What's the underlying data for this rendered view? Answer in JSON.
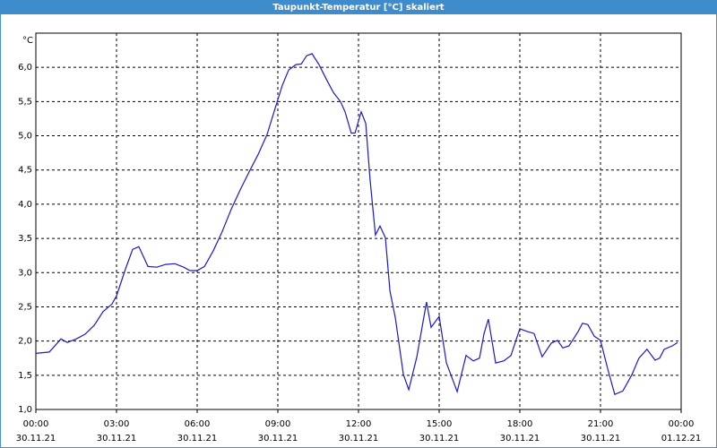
{
  "chart_data": {
    "type": "line",
    "title": "Taupunkt-Temperatur [°C] skaliert",
    "y_label": "°C",
    "color": "#1a1acc",
    "grid": true,
    "xlim": [
      0,
      24
    ],
    "ylim": [
      1.0,
      6.5
    ],
    "xticks": [
      {
        "value": 0,
        "label": "00:00",
        "date": "30.11.21"
      },
      {
        "value": 3,
        "label": "03:00",
        "date": "30.11.21"
      },
      {
        "value": 6,
        "label": "06:00",
        "date": "30.11.21"
      },
      {
        "value": 9,
        "label": "09:00",
        "date": "30.11.21"
      },
      {
        "value": 12,
        "label": "12:00",
        "date": "30.11.21"
      },
      {
        "value": 15,
        "label": "15:00",
        "date": "30.11.21"
      },
      {
        "value": 18,
        "label": "18:00",
        "date": "30.11.21"
      },
      {
        "value": 21,
        "label": "21:00",
        "date": "30.11.21"
      },
      {
        "value": 24,
        "label": "00:00",
        "date": "01.12.21"
      }
    ],
    "yticks": [
      {
        "value": 1.0,
        "label": "1,0"
      },
      {
        "value": 1.5,
        "label": "1,5"
      },
      {
        "value": 2.0,
        "label": "2,0"
      },
      {
        "value": 2.5,
        "label": "2,5"
      },
      {
        "value": 3.0,
        "label": "3,0"
      },
      {
        "value": 3.5,
        "label": "3,5"
      },
      {
        "value": 4.0,
        "label": "4,0"
      },
      {
        "value": 4.5,
        "label": "4,5"
      },
      {
        "value": 5.0,
        "label": "5,0"
      },
      {
        "value": 5.5,
        "label": "5,5"
      },
      {
        "value": 6.0,
        "label": "6,0"
      }
    ],
    "x": [
      0.0,
      0.5,
      0.73,
      0.93,
      1.17,
      1.5,
      1.83,
      2.17,
      2.5,
      2.83,
      3.0,
      3.33,
      3.6,
      3.83,
      4.17,
      4.5,
      4.83,
      5.17,
      5.5,
      5.73,
      6.0,
      6.27,
      6.6,
      6.93,
      7.27,
      7.6,
      7.93,
      8.27,
      8.6,
      8.93,
      9.17,
      9.4,
      9.67,
      9.87,
      10.07,
      10.27,
      10.53,
      10.8,
      11.07,
      11.33,
      11.5,
      11.73,
      11.87,
      12.1,
      12.27,
      12.43,
      12.63,
      12.8,
      13.0,
      13.17,
      13.37,
      13.67,
      13.87,
      14.17,
      14.53,
      14.7,
      15.0,
      15.27,
      15.67,
      16.0,
      16.27,
      16.5,
      16.67,
      16.83,
      17.1,
      17.4,
      17.67,
      18.0,
      18.27,
      18.53,
      18.83,
      19.17,
      19.4,
      19.6,
      19.83,
      20.17,
      20.33,
      20.53,
      20.77,
      21.0,
      21.27,
      21.53,
      21.83,
      22.17,
      22.43,
      22.73,
      23.03,
      23.2,
      23.37,
      23.67,
      23.87
    ],
    "values": [
      1.82,
      1.84,
      1.94,
      2.03,
      1.98,
      2.03,
      2.1,
      2.23,
      2.43,
      2.54,
      2.66,
      3.05,
      3.34,
      3.38,
      3.09,
      3.08,
      3.12,
      3.13,
      3.08,
      3.03,
      3.03,
      3.09,
      3.32,
      3.6,
      3.93,
      4.21,
      4.47,
      4.73,
      5.02,
      5.44,
      5.74,
      5.96,
      6.04,
      6.05,
      6.17,
      6.2,
      6.04,
      5.83,
      5.63,
      5.5,
      5.35,
      5.04,
      5.04,
      5.35,
      5.18,
      4.36,
      3.55,
      3.68,
      3.51,
      2.73,
      2.34,
      1.51,
      1.29,
      1.77,
      2.57,
      2.2,
      2.36,
      1.68,
      1.26,
      1.79,
      1.71,
      1.75,
      2.11,
      2.32,
      1.68,
      1.71,
      1.79,
      2.18,
      2.14,
      2.11,
      1.77,
      1.97,
      2.01,
      1.9,
      1.93,
      2.14,
      2.26,
      2.24,
      2.07,
      2.01,
      1.59,
      1.22,
      1.27,
      1.51,
      1.75,
      1.88,
      1.72,
      1.75,
      1.88,
      1.93,
      1.98
    ]
  }
}
